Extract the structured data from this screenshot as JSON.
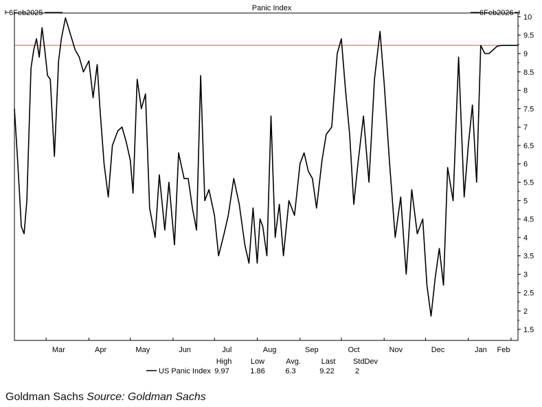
{
  "chart_data": {
    "type": "line",
    "title": "Panic Index",
    "start_label": "6Feb2025",
    "end_label": "6Feb2026",
    "ylim": [
      1.2,
      10.1
    ],
    "y_ticks": [
      1.5,
      2,
      2.5,
      3,
      3.5,
      4,
      4.5,
      5,
      5.5,
      6,
      6.5,
      7,
      7.5,
      8,
      8.5,
      9,
      9.5,
      10
    ],
    "y_tick_labels": [
      "1.5",
      "2",
      "2.5",
      "3",
      "3.5",
      "4",
      "4.5",
      "5",
      "5.5",
      "6",
      "6.5",
      "7",
      "7.5",
      "8",
      "8.5",
      "9",
      "9.5",
      "10"
    ],
    "x_tick_labels": [
      "Mar",
      "Apr",
      "May",
      "Jun",
      "Jul",
      "Aug",
      "Sep",
      "Oct",
      "Nov",
      "Dec",
      "Jan",
      "Feb"
    ],
    "x_tick_dates": [
      "2025-03-01",
      "2025-04-01",
      "2025-05-01",
      "2025-06-01",
      "2025-07-01",
      "2025-08-01",
      "2025-09-01",
      "2025-10-01",
      "2025-11-01",
      "2025-12-01",
      "2026-01-01",
      "2026-02-01"
    ],
    "x_start": "2025-02-06",
    "x_end": "2026-02-06",
    "reference_line": 9.22,
    "reference_color": "#d9534f",
    "line_color": "#000000",
    "grid": false,
    "series": [
      {
        "name": "US Panic Index",
        "x": [
          "2025-02-06",
          "2025-02-08",
          "2025-02-10",
          "2025-02-11",
          "2025-02-13",
          "2025-02-15",
          "2025-02-18",
          "2025-02-20",
          "2025-02-22",
          "2025-02-24",
          "2025-02-26",
          "2025-02-28",
          "2025-03-02",
          "2025-03-04",
          "2025-03-07",
          "2025-03-10",
          "2025-03-12",
          "2025-03-15",
          "2025-03-18",
          "2025-03-22",
          "2025-03-25",
          "2025-03-28",
          "2025-04-01",
          "2025-04-04",
          "2025-04-07",
          "2025-04-09",
          "2025-04-12",
          "2025-04-15",
          "2025-04-18",
          "2025-04-22",
          "2025-04-25",
          "2025-04-28",
          "2025-05-01",
          "2025-05-03",
          "2025-05-06",
          "2025-05-09",
          "2025-05-12",
          "2025-05-15",
          "2025-05-19",
          "2025-05-22",
          "2025-05-26",
          "2025-05-29",
          "2025-06-02",
          "2025-06-05",
          "2025-06-09",
          "2025-06-12",
          "2025-06-15",
          "2025-06-18",
          "2025-06-21",
          "2025-06-24",
          "2025-06-27",
          "2025-07-01",
          "2025-07-04",
          "2025-07-08",
          "2025-07-11",
          "2025-07-15",
          "2025-07-19",
          "2025-07-23",
          "2025-07-26",
          "2025-07-29",
          "2025-08-01",
          "2025-08-03",
          "2025-08-05",
          "2025-08-08",
          "2025-08-11",
          "2025-08-14",
          "2025-08-17",
          "2025-08-20",
          "2025-08-24",
          "2025-08-28",
          "2025-09-01",
          "2025-09-04",
          "2025-09-07",
          "2025-09-10",
          "2025-09-13",
          "2025-09-17",
          "2025-09-20",
          "2025-09-24",
          "2025-09-28",
          "2025-10-01",
          "2025-10-04",
          "2025-10-07",
          "2025-10-10",
          "2025-10-13",
          "2025-10-17",
          "2025-10-21",
          "2025-10-25",
          "2025-10-29",
          "2025-11-01",
          "2025-11-05",
          "2025-11-09",
          "2025-11-13",
          "2025-11-17",
          "2025-11-21",
          "2025-11-25",
          "2025-11-29",
          "2025-12-02",
          "2025-12-05",
          "2025-12-08",
          "2025-12-11",
          "2025-12-14",
          "2025-12-17",
          "2025-12-21",
          "2025-12-25",
          "2025-12-29",
          "2026-01-01",
          "2026-01-04",
          "2026-01-07",
          "2026-01-10",
          "2026-01-13",
          "2026-01-16",
          "2026-01-19",
          "2026-01-22",
          "2026-01-25",
          "2026-01-28",
          "2026-01-31",
          "2026-02-02",
          "2026-02-04",
          "2026-02-06"
        ],
        "y": [
          7.5,
          6.3,
          5.0,
          4.3,
          4.1,
          5.0,
          8.6,
          9.1,
          9.4,
          8.9,
          9.7,
          9.1,
          8.4,
          8.3,
          6.2,
          8.8,
          9.4,
          9.97,
          9.6,
          9.1,
          8.9,
          8.5,
          8.8,
          7.8,
          8.7,
          7.5,
          6.0,
          5.1,
          6.5,
          6.9,
          7.0,
          6.6,
          6.1,
          5.2,
          8.3,
          7.5,
          7.9,
          4.8,
          4.0,
          5.7,
          4.2,
          5.5,
          3.8,
          6.3,
          5.6,
          5.6,
          4.8,
          4.2,
          8.4,
          5.0,
          5.3,
          4.6,
          3.5,
          4.1,
          4.6,
          5.6,
          4.9,
          3.8,
          3.3,
          4.8,
          3.3,
          4.5,
          4.3,
          3.5,
          7.3,
          4.0,
          4.9,
          3.5,
          5.0,
          4.6,
          6.0,
          6.3,
          5.8,
          5.6,
          4.8,
          6.1,
          6.8,
          7.0,
          9.0,
          9.4,
          8.0,
          6.8,
          4.9,
          6.0,
          7.3,
          5.5,
          8.3,
          9.6,
          8.2,
          6.0,
          4.0,
          5.1,
          3.0,
          5.3,
          4.1,
          4.5,
          2.7,
          1.86,
          2.9,
          3.7,
          2.7,
          5.9,
          5.0,
          8.9,
          5.1,
          6.5,
          7.6,
          5.5,
          9.22,
          9.0,
          9.0,
          9.1,
          9.2,
          9.22,
          9.22,
          9.22,
          9.22,
          9.22,
          9.22
        ]
      }
    ],
    "stats": {
      "headers": [
        "High",
        "Low",
        "Avg.",
        "Last",
        "StdDev"
      ],
      "values": [
        "9.97",
        "1.86",
        "6.3",
        "9.22",
        "2"
      ],
      "legend_label": "US Panic Index"
    }
  },
  "footer": {
    "source_org": "Goldman Sachs",
    "source_label": "Source:",
    "source_value": "Goldman Sachs"
  }
}
